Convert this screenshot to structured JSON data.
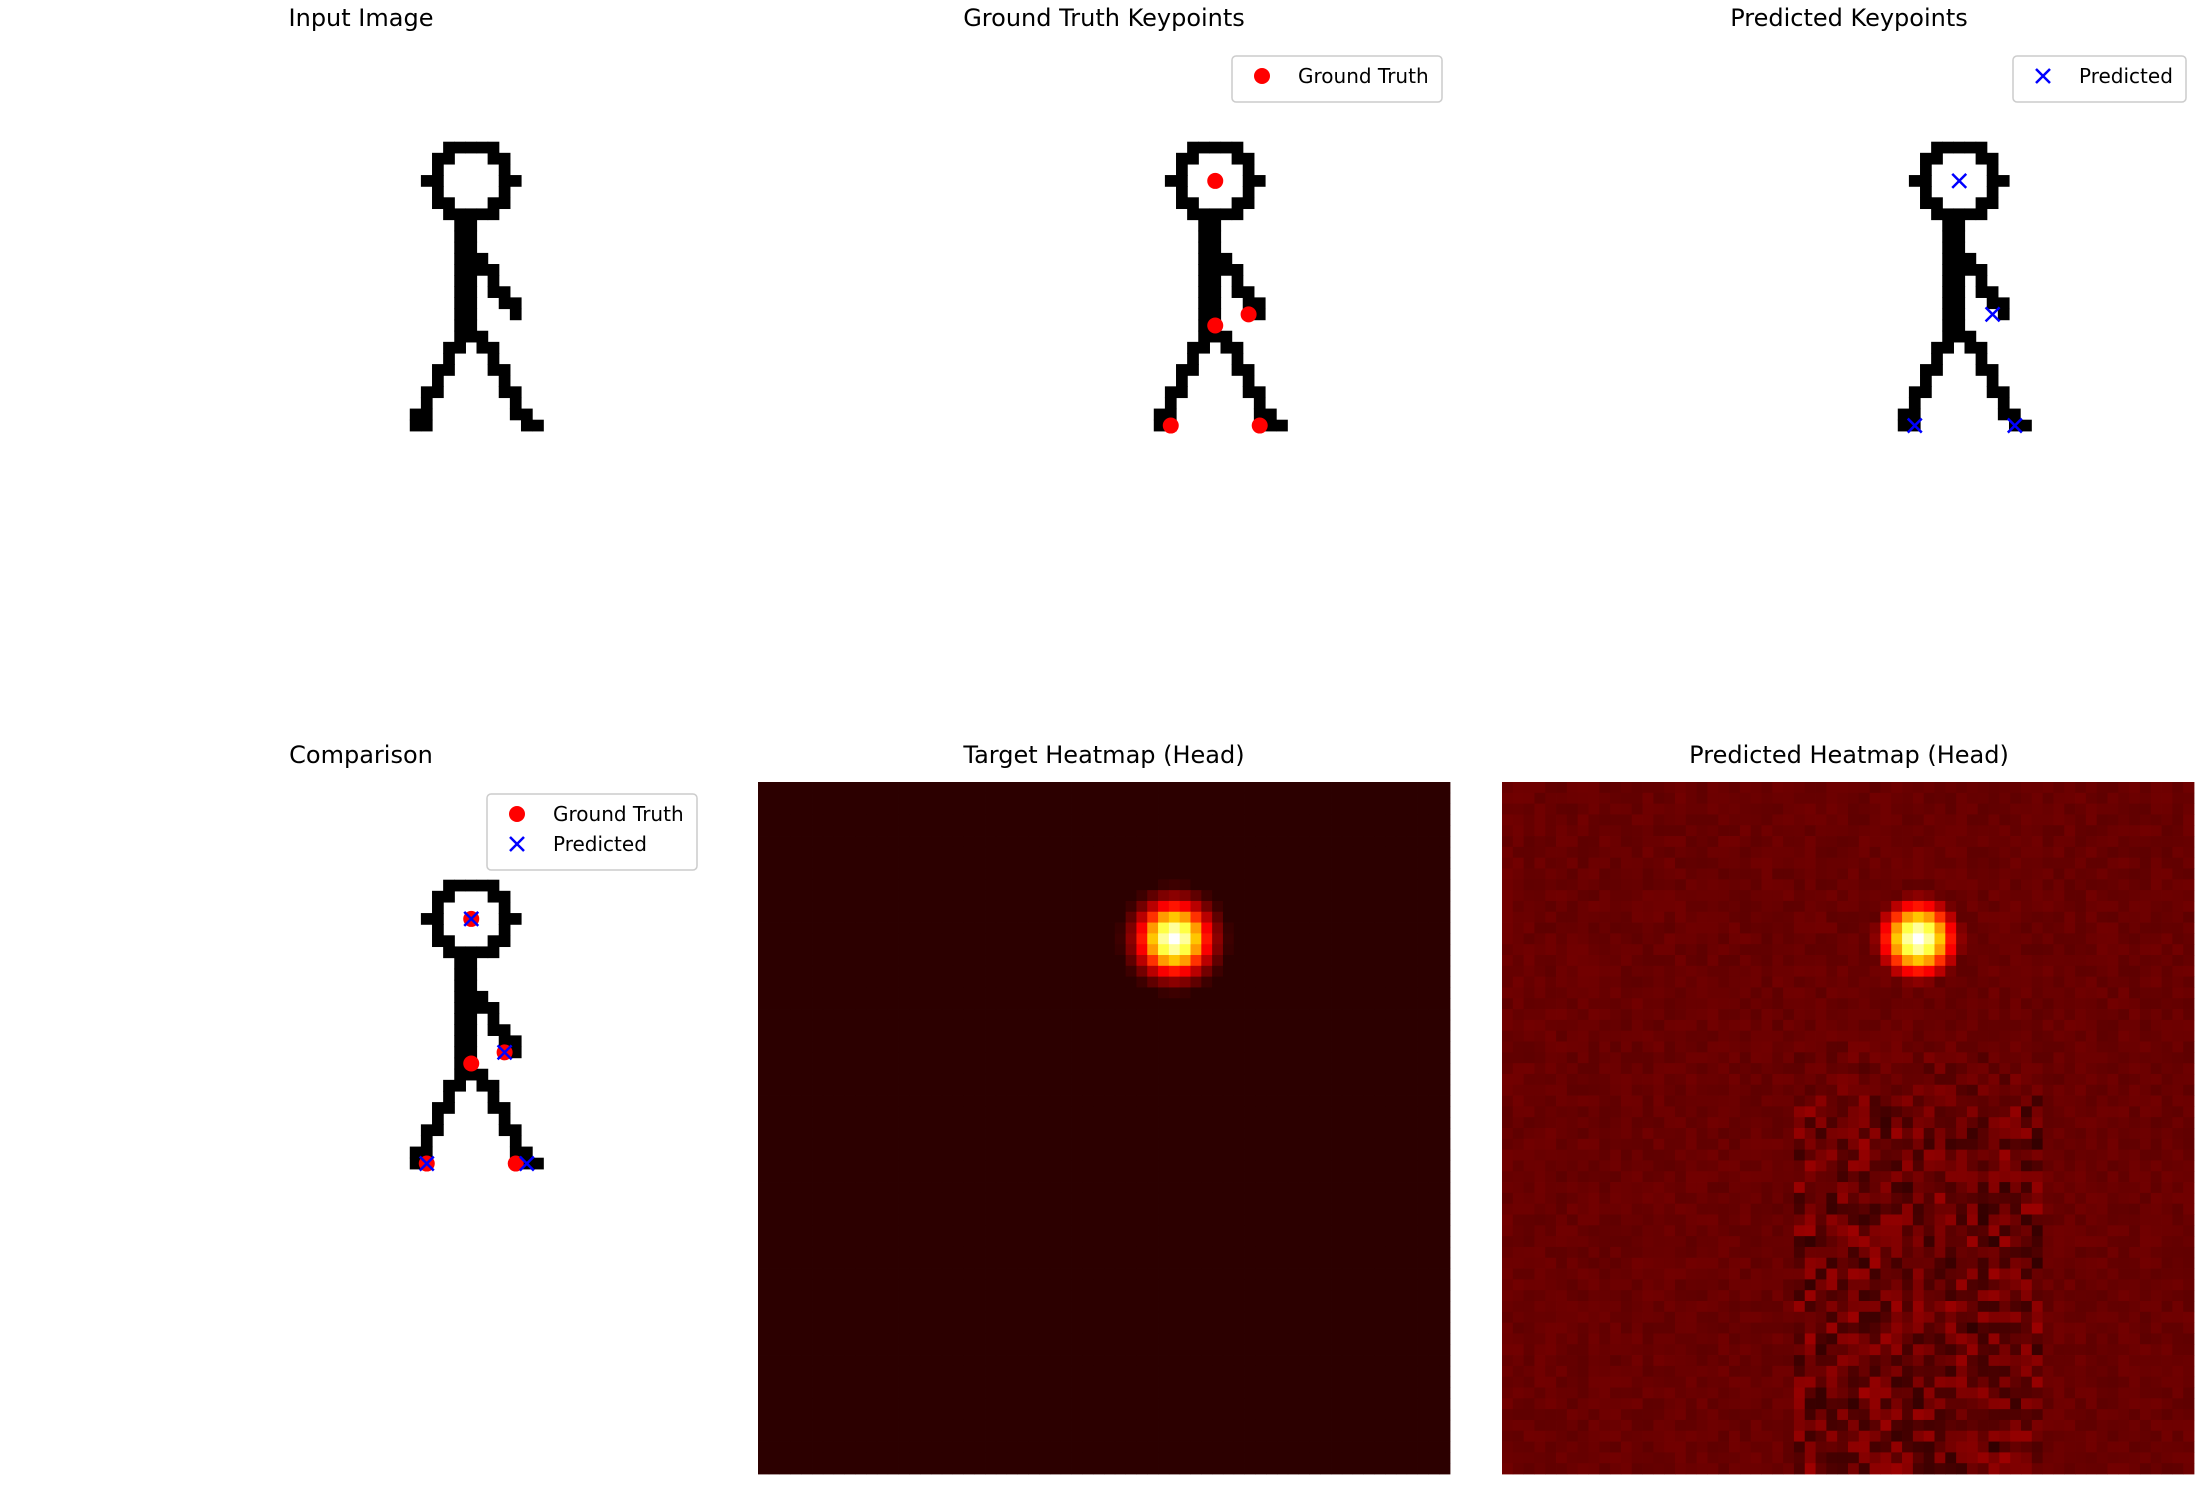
{
  "chart_data": [
    {
      "type": "scatter",
      "title": "Input Image",
      "background": "stick_figure",
      "axes": "off",
      "series": []
    },
    {
      "type": "scatter",
      "title": "Ground Truth Keypoints",
      "background": "stick_figure",
      "axes": "off",
      "legend": "upper right",
      "series": [
        {
          "name": "Ground Truth",
          "marker": "o",
          "color": "#ff0000",
          "points": [
            [
              14.5,
              3.5
            ],
            [
              14.5,
              16.5
            ],
            [
              17.5,
              15.5
            ],
            [
              10.5,
              25.5
            ],
            [
              18.5,
              25.5
            ]
          ]
        }
      ]
    },
    {
      "type": "scatter",
      "title": "Predicted Keypoints",
      "background": "stick_figure",
      "axes": "off",
      "legend": "upper right",
      "series": [
        {
          "name": "Predicted",
          "marker": "x",
          "color": "#0000ff",
          "points": [
            [
              14.5,
              3.5
            ],
            [
              17.5,
              15.5
            ],
            [
              10.5,
              25.5
            ],
            [
              19.5,
              25.5
            ]
          ]
        }
      ]
    },
    {
      "type": "scatter",
      "title": "Comparison",
      "background": "stick_figure",
      "axes": "off",
      "legend": "upper right",
      "series": [
        {
          "name": "Ground Truth",
          "marker": "o",
          "color": "#ff0000",
          "points": [
            [
              14.5,
              3.5
            ],
            [
              14.5,
              16.5
            ],
            [
              17.5,
              15.5
            ],
            [
              10.5,
              25.5
            ],
            [
              18.5,
              25.5
            ]
          ]
        },
        {
          "name": "Predicted",
          "marker": "x",
          "color": "#0000ff",
          "points": [
            [
              14.5,
              3.5
            ],
            [
              17.5,
              15.5
            ],
            [
              10.5,
              25.5
            ],
            [
              19.5,
              25.5
            ]
          ]
        }
      ]
    },
    {
      "type": "heatmap",
      "title": "Target Heatmap (Head)",
      "colormap": "hot",
      "grid_size": [
        64,
        64
      ],
      "axes": "off",
      "peak": {
        "x": 38,
        "y": 14,
        "value": 1.0
      },
      "background_level": 0.05
    },
    {
      "type": "heatmap",
      "title": "Predicted Heatmap (Head)",
      "colormap": "hot",
      "grid_size": [
        64,
        64
      ],
      "axes": "off",
      "peak": {
        "x": 38,
        "y": 14,
        "value": 1.0
      },
      "background_level": 0.14
    }
  ]
}
